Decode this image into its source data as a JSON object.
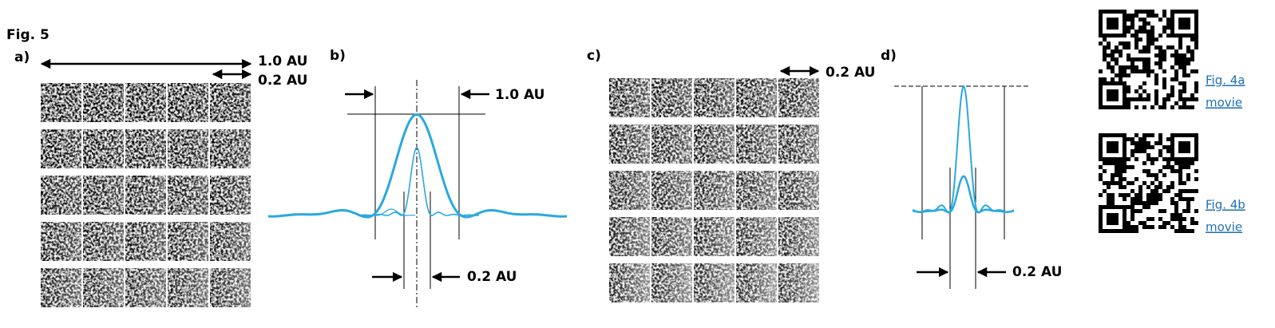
{
  "figure": {
    "title": "Fig. 5",
    "panels": [
      {
        "label": "a)",
        "annotations": [
          "1.0 AU",
          "0.2 AU"
        ]
      },
      {
        "label": "b)",
        "annotations": [
          "1.0 AU",
          "0.2 AU"
        ]
      },
      {
        "label": "c)",
        "annotations": [
          "0.2 AU"
        ]
      },
      {
        "label": "d)",
        "annotations": [
          "0.2 AU"
        ]
      }
    ]
  },
  "links": [
    {
      "lines": [
        "Fig. 4a",
        "movie"
      ]
    },
    {
      "lines": [
        "Fig. 4b",
        "movie"
      ]
    }
  ]
}
